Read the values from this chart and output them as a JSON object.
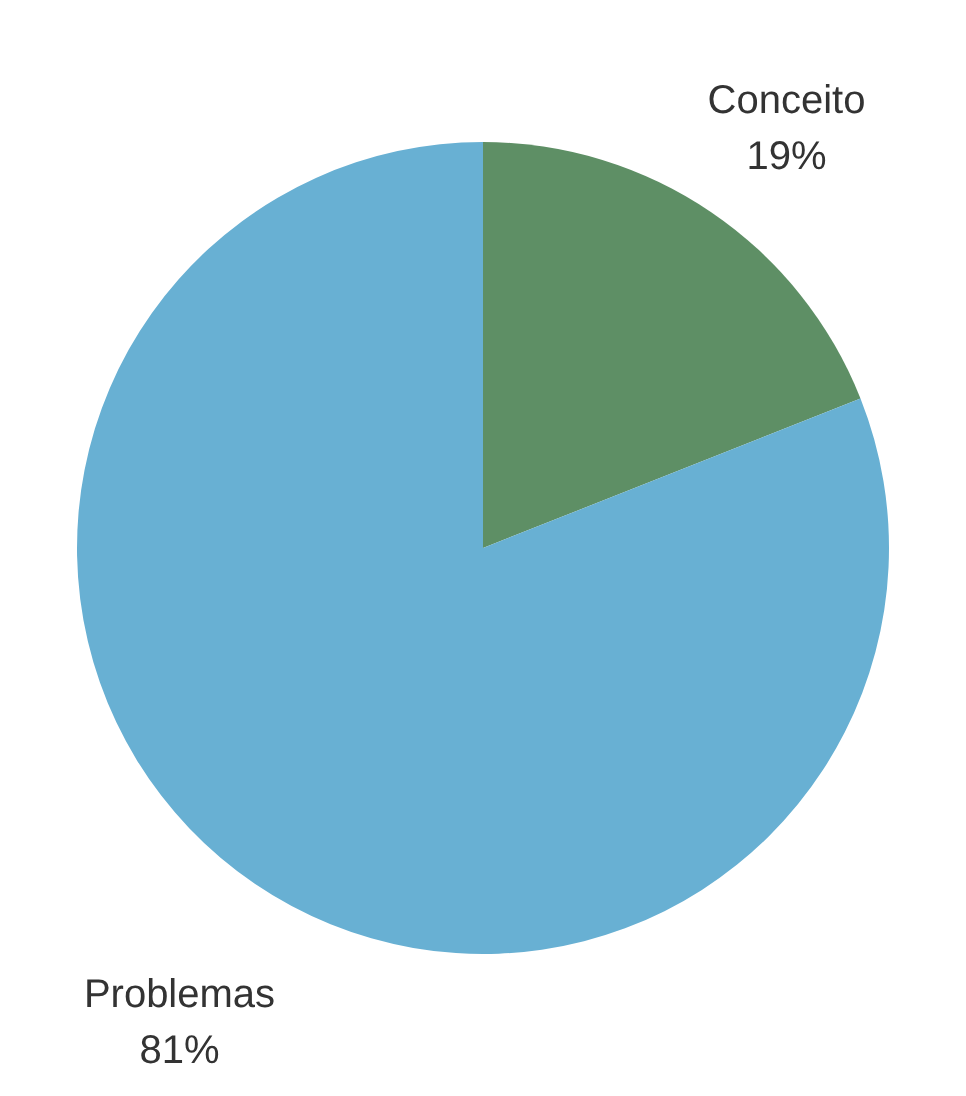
{
  "chart_data": {
    "type": "pie",
    "categories": [
      "Conceito",
      "Problemas"
    ],
    "values": [
      19,
      81
    ],
    "colors": [
      "#5e8f65",
      "#68b0d3"
    ],
    "value_labels": [
      "19%",
      "81%"
    ]
  }
}
